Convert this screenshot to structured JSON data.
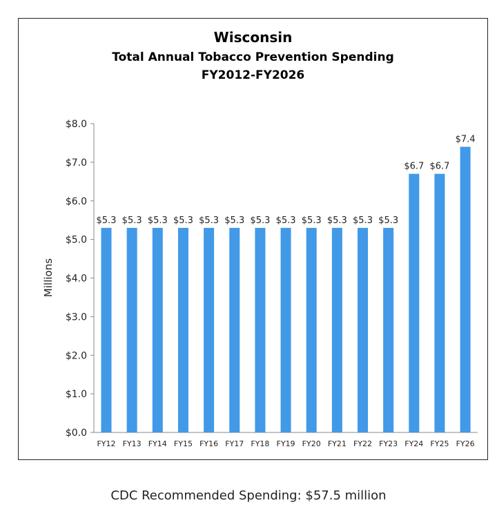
{
  "chart_data": {
    "type": "bar",
    "title": "Wisconsin",
    "subtitle": "Total Annual Tobacco Prevention Spending",
    "subtitle2": "FY2012-FY2026",
    "ylabel": "Millions",
    "xlabel": "",
    "ylim": [
      0,
      8
    ],
    "yticks": [
      "$0.0",
      "$1.0",
      "$2.0",
      "$3.0",
      "$4.0",
      "$5.0",
      "$6.0",
      "$7.0",
      "$8.0"
    ],
    "categories": [
      "FY12",
      "FY13",
      "FY14",
      "FY15",
      "FY16",
      "FY17",
      "FY18",
      "FY19",
      "FY20",
      "FY21",
      "FY22",
      "FY23",
      "FY24",
      "FY25",
      "FY26"
    ],
    "values": [
      5.3,
      5.3,
      5.3,
      5.3,
      5.3,
      5.3,
      5.3,
      5.3,
      5.3,
      5.3,
      5.3,
      5.3,
      6.7,
      6.7,
      7.4
    ],
    "data_labels": [
      "$5.3",
      "$5.3",
      "$5.3",
      "$5.3",
      "$5.3",
      "$5.3",
      "$5.3",
      "$5.3",
      "$5.3",
      "$5.3",
      "$5.3",
      "$5.3",
      "$6.7",
      "$6.7",
      "$7.4"
    ],
    "bar_color": "#4199e8",
    "grid": false,
    "legend": "none"
  },
  "footer": "CDC Recommended Spending: $57.5 million"
}
